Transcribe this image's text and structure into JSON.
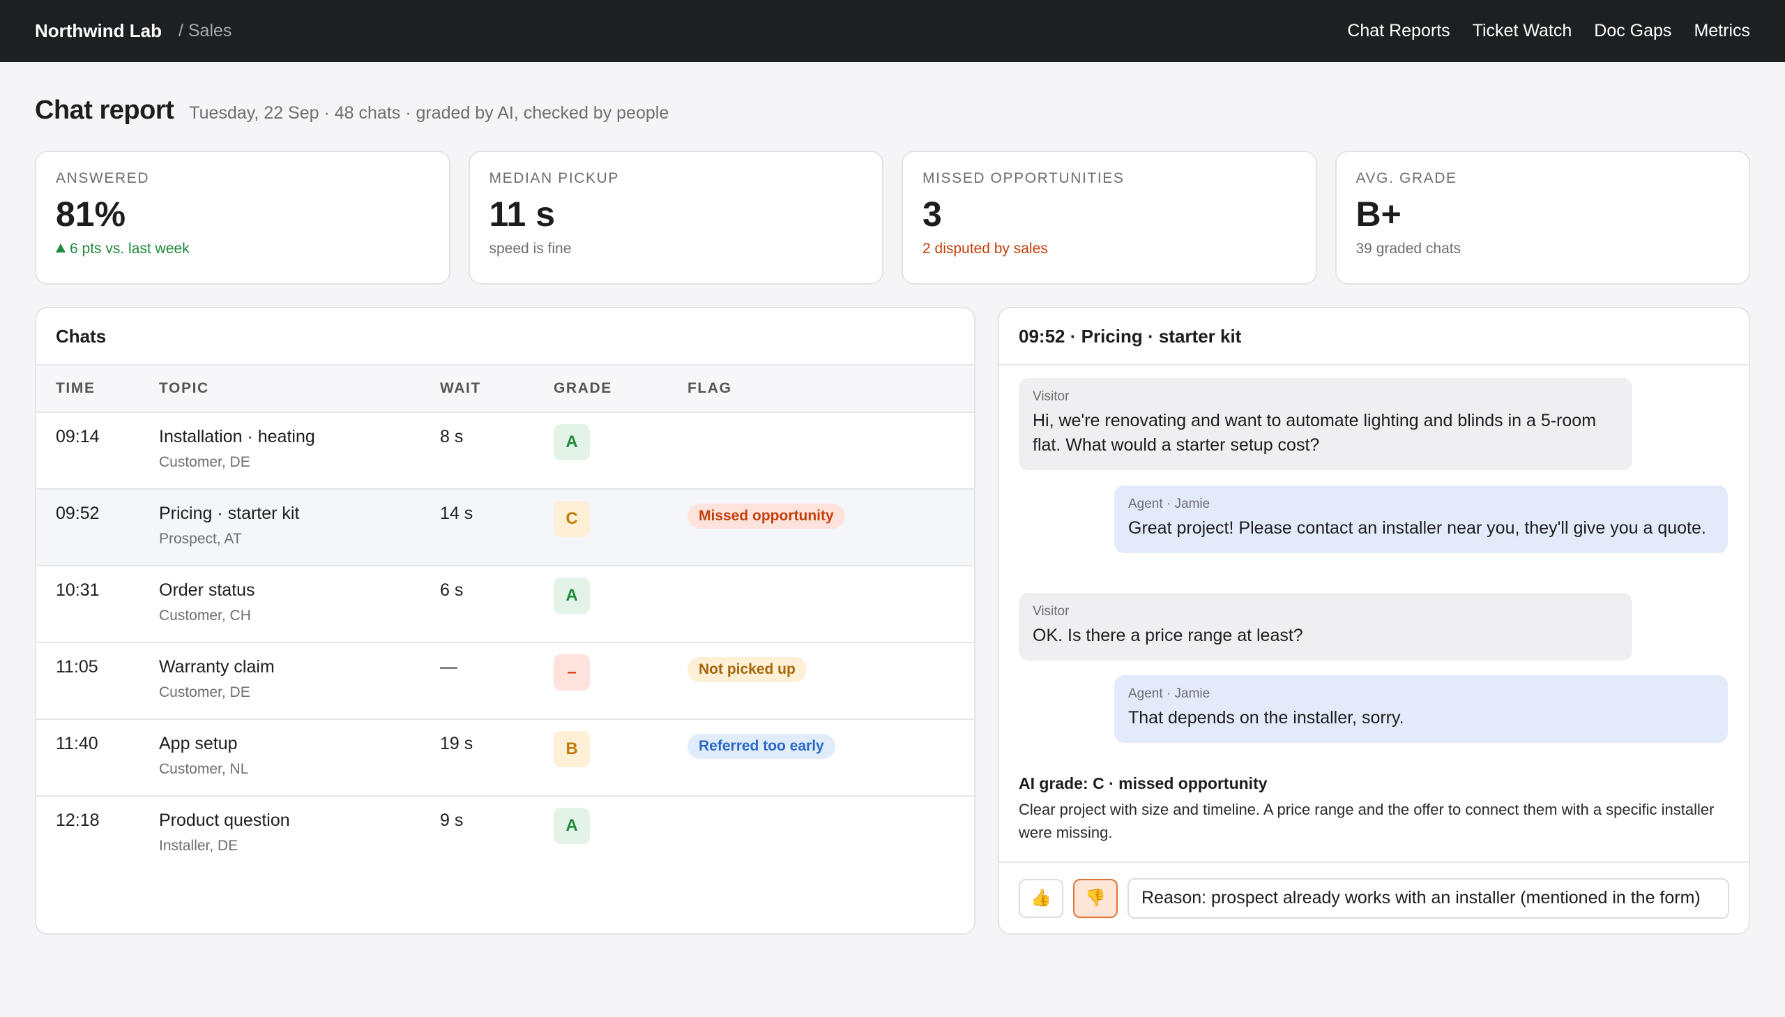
{
  "topbar": {
    "brand": "Northwind Lab",
    "crumb": "/ Sales",
    "nav": [
      "Chat Reports",
      "Ticket Watch",
      "Doc Gaps",
      "Metrics"
    ]
  },
  "header": {
    "title": "Chat report",
    "subtitle": "Tuesday, 22 Sep · 48 chats · graded by AI, checked by people"
  },
  "kpis": [
    {
      "label": "ANSWERED",
      "value": "81%",
      "note": "6 pts vs. last week"
    },
    {
      "label": "MEDIAN PICKUP",
      "value": "11 s",
      "note": "speed is fine"
    },
    {
      "label": "MISSED OPPORTUNITIES",
      "value": "3",
      "note": "2 disputed by sales"
    },
    {
      "label": "AVG. GRADE",
      "value": "B+",
      "note": "39 graded chats"
    }
  ],
  "chats": {
    "title": "Chats",
    "columns": {
      "time": "TIME",
      "topic": "TOPIC",
      "wait": "WAIT",
      "grade": "GRADE",
      "flag": "FLAG"
    },
    "rows": [
      {
        "time": "09:14",
        "topic": "Installation · heating",
        "sub": "Customer, DE",
        "wait": "8 s",
        "grade": "A",
        "flag": ""
      },
      {
        "time": "09:52",
        "topic": "Pricing · starter kit",
        "sub": "Prospect, AT",
        "wait": "14 s",
        "grade": "C",
        "flag": "Missed opportunity"
      },
      {
        "time": "10:31",
        "topic": "Order status",
        "sub": "Customer, CH",
        "wait": "6 s",
        "grade": "A",
        "flag": ""
      },
      {
        "time": "11:05",
        "topic": "Warranty claim",
        "sub": "Customer, DE",
        "wait": "—",
        "grade": "–",
        "flag": "Not picked up"
      },
      {
        "time": "11:40",
        "topic": "App setup",
        "sub": "Customer, NL",
        "wait": "19 s",
        "grade": "B",
        "flag": "Referred too early"
      },
      {
        "time": "12:18",
        "topic": "Product question",
        "sub": "Installer, DE",
        "wait": "9 s",
        "grade": "A",
        "flag": ""
      }
    ]
  },
  "detail": {
    "title": "09:52 · Pricing · starter kit",
    "messages": [
      {
        "who": "Visitor",
        "text": "Hi, we're renovating and want to automate lighting and blinds in a 5-room flat. What would a starter setup cost?"
      },
      {
        "who": "Agent · Jamie",
        "text": "Great project! Please contact an installer near you, they'll give you a quote."
      },
      {
        "who": "Visitor",
        "text": "OK. Is there a price range at least?"
      },
      {
        "who": "Agent · Jamie",
        "text": "That depends on the installer, sorry."
      }
    ],
    "ai_title": "AI grade: C · missed opportunity",
    "ai_text": "Clear project with size and timeline. A price range and the offer to connect them with a specific installer were missing.",
    "thumbs_up": "👍",
    "thumbs_down": "👎",
    "reason_value": "Reason: prospect already works with an installer (mentioned in the form)"
  }
}
